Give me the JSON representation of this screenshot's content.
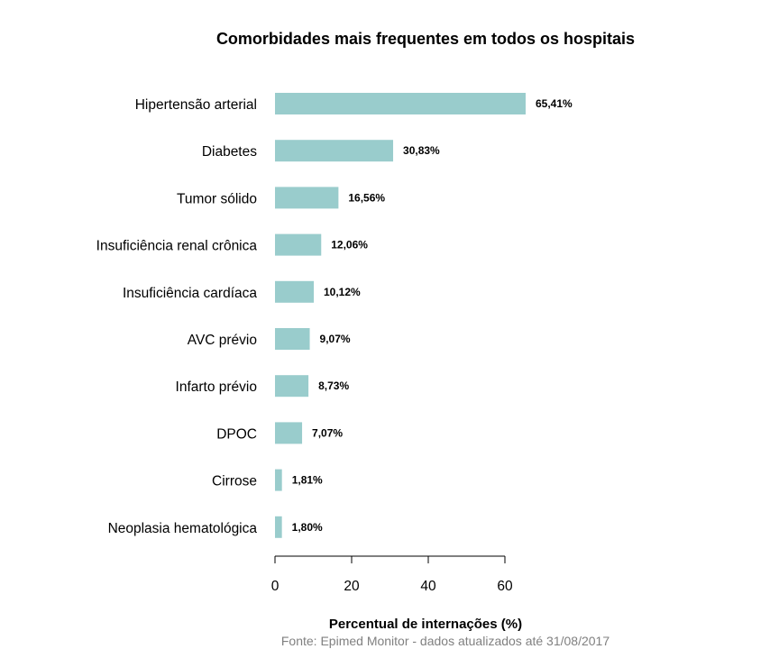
{
  "chart_data": {
    "type": "bar",
    "orientation": "horizontal",
    "title": "Comorbidades mais frequentes em todos os hospitais",
    "xlabel": "Percentual de internações (%)",
    "ylabel": "",
    "source": "Fonte: Epimed Monitor - dados atualizados até 31/08/2017",
    "categories": [
      "Hipertensão arterial",
      "Diabetes",
      "Tumor sólido",
      "Insuficiência renal crônica",
      "Insuficiência cardíaca",
      "AVC prévio",
      "Infarto prévio",
      "DPOC",
      "Cirrose",
      "Neoplasia hematológica"
    ],
    "values": [
      65.41,
      30.83,
      16.56,
      12.06,
      10.12,
      9.07,
      8.73,
      7.07,
      1.81,
      1.8
    ],
    "data_labels": [
      "65,41%",
      "30,83%",
      "16,56%",
      "12,06%",
      "10,12%",
      "9,07%",
      "8,73%",
      "7,07%",
      "1,81%",
      "1,80%"
    ],
    "xticks": [
      0,
      20,
      40,
      60
    ],
    "xtick_labels": [
      "0",
      "20",
      "40",
      "60"
    ],
    "xlim": [
      0,
      70
    ],
    "grid": false,
    "legend": "none",
    "bar_color": "#99cccc"
  }
}
